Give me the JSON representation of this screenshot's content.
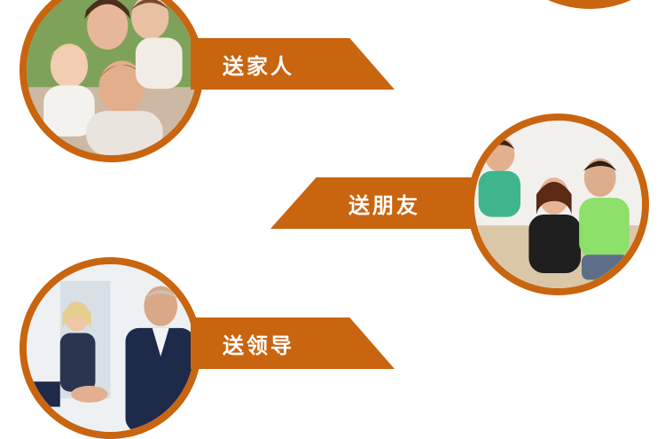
{
  "sections": [
    {
      "label": "送家人"
    },
    {
      "label": "送朋友"
    },
    {
      "label": "送领导"
    }
  ],
  "colors": {
    "accent": "#c9640f",
    "background": "#ffffff"
  }
}
